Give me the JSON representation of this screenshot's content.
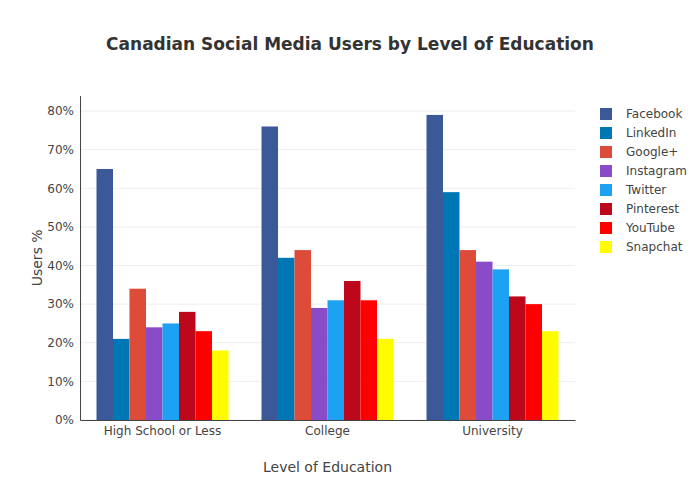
{
  "chart_data": {
    "type": "bar",
    "title": "Canadian Social Media Users by Level of Education",
    "x_label": "Level of Education",
    "y_label": "Users %",
    "categories": [
      "High School or Less",
      "College",
      "University"
    ],
    "series": [
      {
        "name": "Facebook",
        "color": "#3b5998",
        "values": [
          65,
          76,
          79
        ]
      },
      {
        "name": "LinkedIn",
        "color": "#0077b5",
        "values": [
          21,
          42,
          59
        ]
      },
      {
        "name": "Google+",
        "color": "#dd4b39",
        "values": [
          34,
          44,
          44
        ]
      },
      {
        "name": "Instagram",
        "color": "#8a4bc8",
        "values": [
          24,
          29,
          41
        ]
      },
      {
        "name": "Twitter",
        "color": "#1da1f2",
        "values": [
          25,
          31,
          39
        ]
      },
      {
        "name": "Pinterest",
        "color": "#bd081c",
        "values": [
          28,
          36,
          32
        ]
      },
      {
        "name": "YouTube",
        "color": "#ff0000",
        "values": [
          23,
          31,
          30
        ]
      },
      {
        "name": "Snapchat",
        "color": "#fffc00",
        "values": [
          18,
          21,
          23
        ]
      }
    ],
    "ylim": [
      0,
      84
    ],
    "yticks": [
      {
        "value": 0,
        "label": "0%"
      },
      {
        "value": 10,
        "label": "10%"
      },
      {
        "value": 20,
        "label": "20%"
      },
      {
        "value": 30,
        "label": "30%"
      },
      {
        "value": 40,
        "label": "40%"
      },
      {
        "value": 50,
        "label": "50%"
      },
      {
        "value": 60,
        "label": "60%"
      },
      {
        "value": 70,
        "label": "70%"
      },
      {
        "value": 80,
        "label": "80%"
      }
    ],
    "grid": true,
    "legend": "right"
  }
}
